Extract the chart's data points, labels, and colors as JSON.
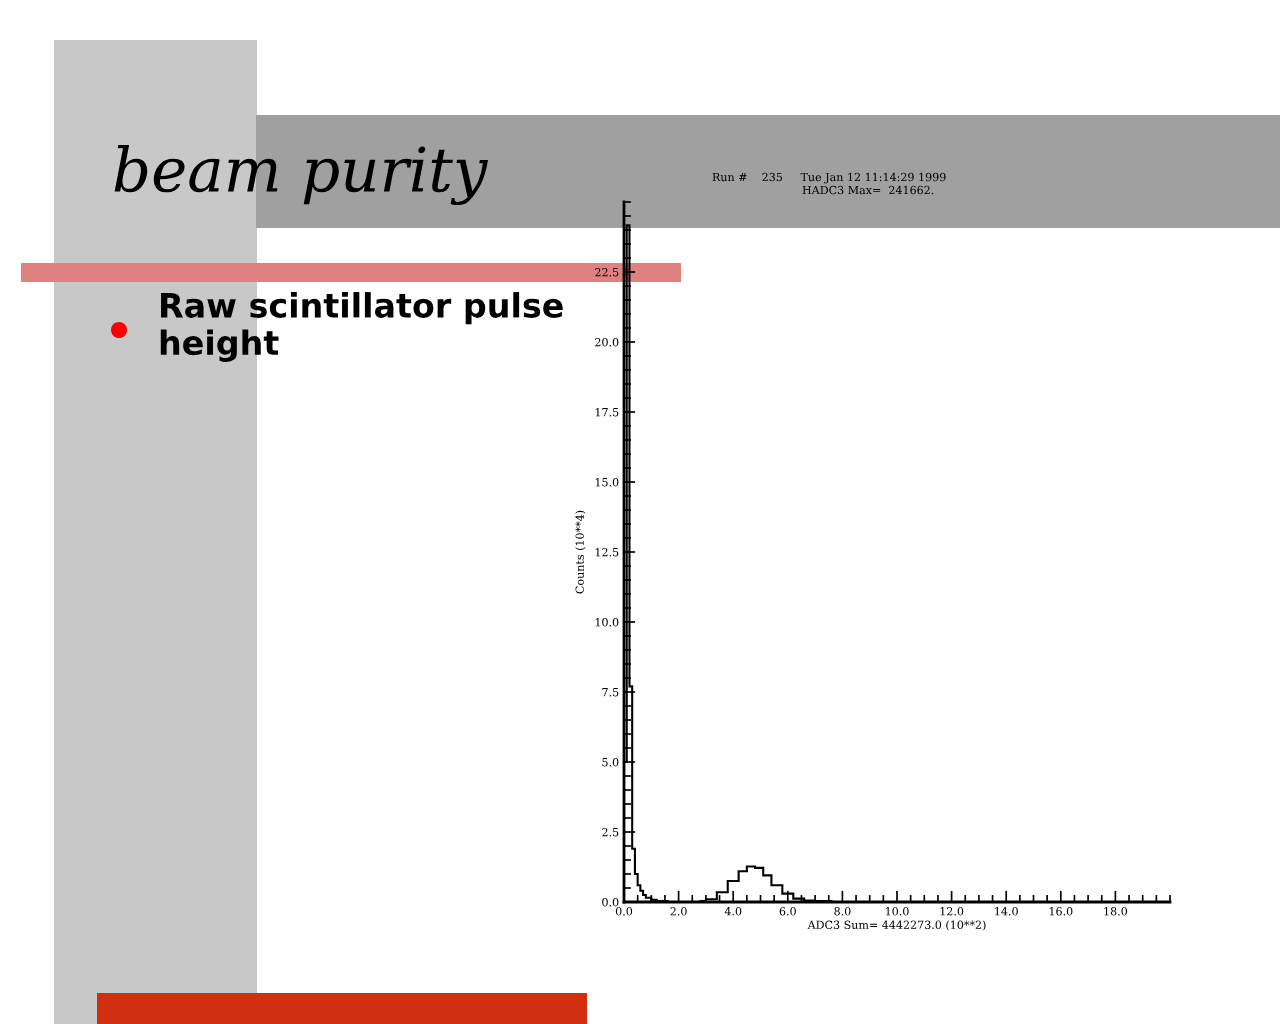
{
  "chart_data": {
    "type": "histogram",
    "title": "beam purity",
    "subtitle": "Raw scintillator pulse height",
    "xlabel": "ADC3 Sum= 4442273.0 (10**2)",
    "ylabel": "Counts (10**4)",
    "annotations": [
      "Run #    235     Tue Jan 12 11:14:29 1999",
      "HADC3 Max=  241662."
    ],
    "bins": [
      0,
      0.1,
      0.2,
      0.3,
      0.4,
      0.5,
      0.6,
      0.7,
      0.8,
      1.0,
      1.2,
      1.6,
      2.8,
      3.0,
      3.4,
      3.8,
      4.2,
      4.5,
      4.8,
      5.1,
      5.4,
      5.8,
      6.2,
      6.6,
      7.0,
      7.6
    ],
    "values": [
      5.0,
      24.17,
      7.7,
      1.9,
      1.0,
      0.6,
      0.4,
      0.25,
      0.15,
      0.08,
      0.03,
      0,
      0.03,
      0.1,
      0.35,
      0.75,
      1.1,
      1.27,
      1.22,
      0.95,
      0.6,
      0.3,
      0.12,
      0.05,
      0.03
    ],
    "color": "#000000",
    "xlim": [
      0,
      20
    ],
    "ylim": [
      0,
      25
    ],
    "xticks": [
      {
        "value": 0,
        "label": "0.0"
      },
      {
        "value": 2,
        "label": "2.0"
      },
      {
        "value": 4,
        "label": "4.0"
      },
      {
        "value": 6,
        "label": "6.0"
      },
      {
        "value": 8,
        "label": "8.0"
      },
      {
        "value": 10,
        "label": "10.0"
      },
      {
        "value": 12,
        "label": "12.0"
      },
      {
        "value": 14,
        "label": "14.0"
      },
      {
        "value": 16,
        "label": "16.0"
      },
      {
        "value": 18,
        "label": "18.0"
      }
    ],
    "yticks": [
      {
        "value": 0,
        "label": "0.0"
      },
      2.5,
      {
        "value": 5,
        "label": "5.0"
      },
      7.5,
      {
        "value": 10,
        "label": "10.0"
      },
      12.5,
      {
        "value": 15,
        "label": "15.0"
      },
      17.5,
      {
        "value": 20,
        "label": "20.0"
      },
      22.5
    ],
    "grid": false,
    "legend": false
  }
}
